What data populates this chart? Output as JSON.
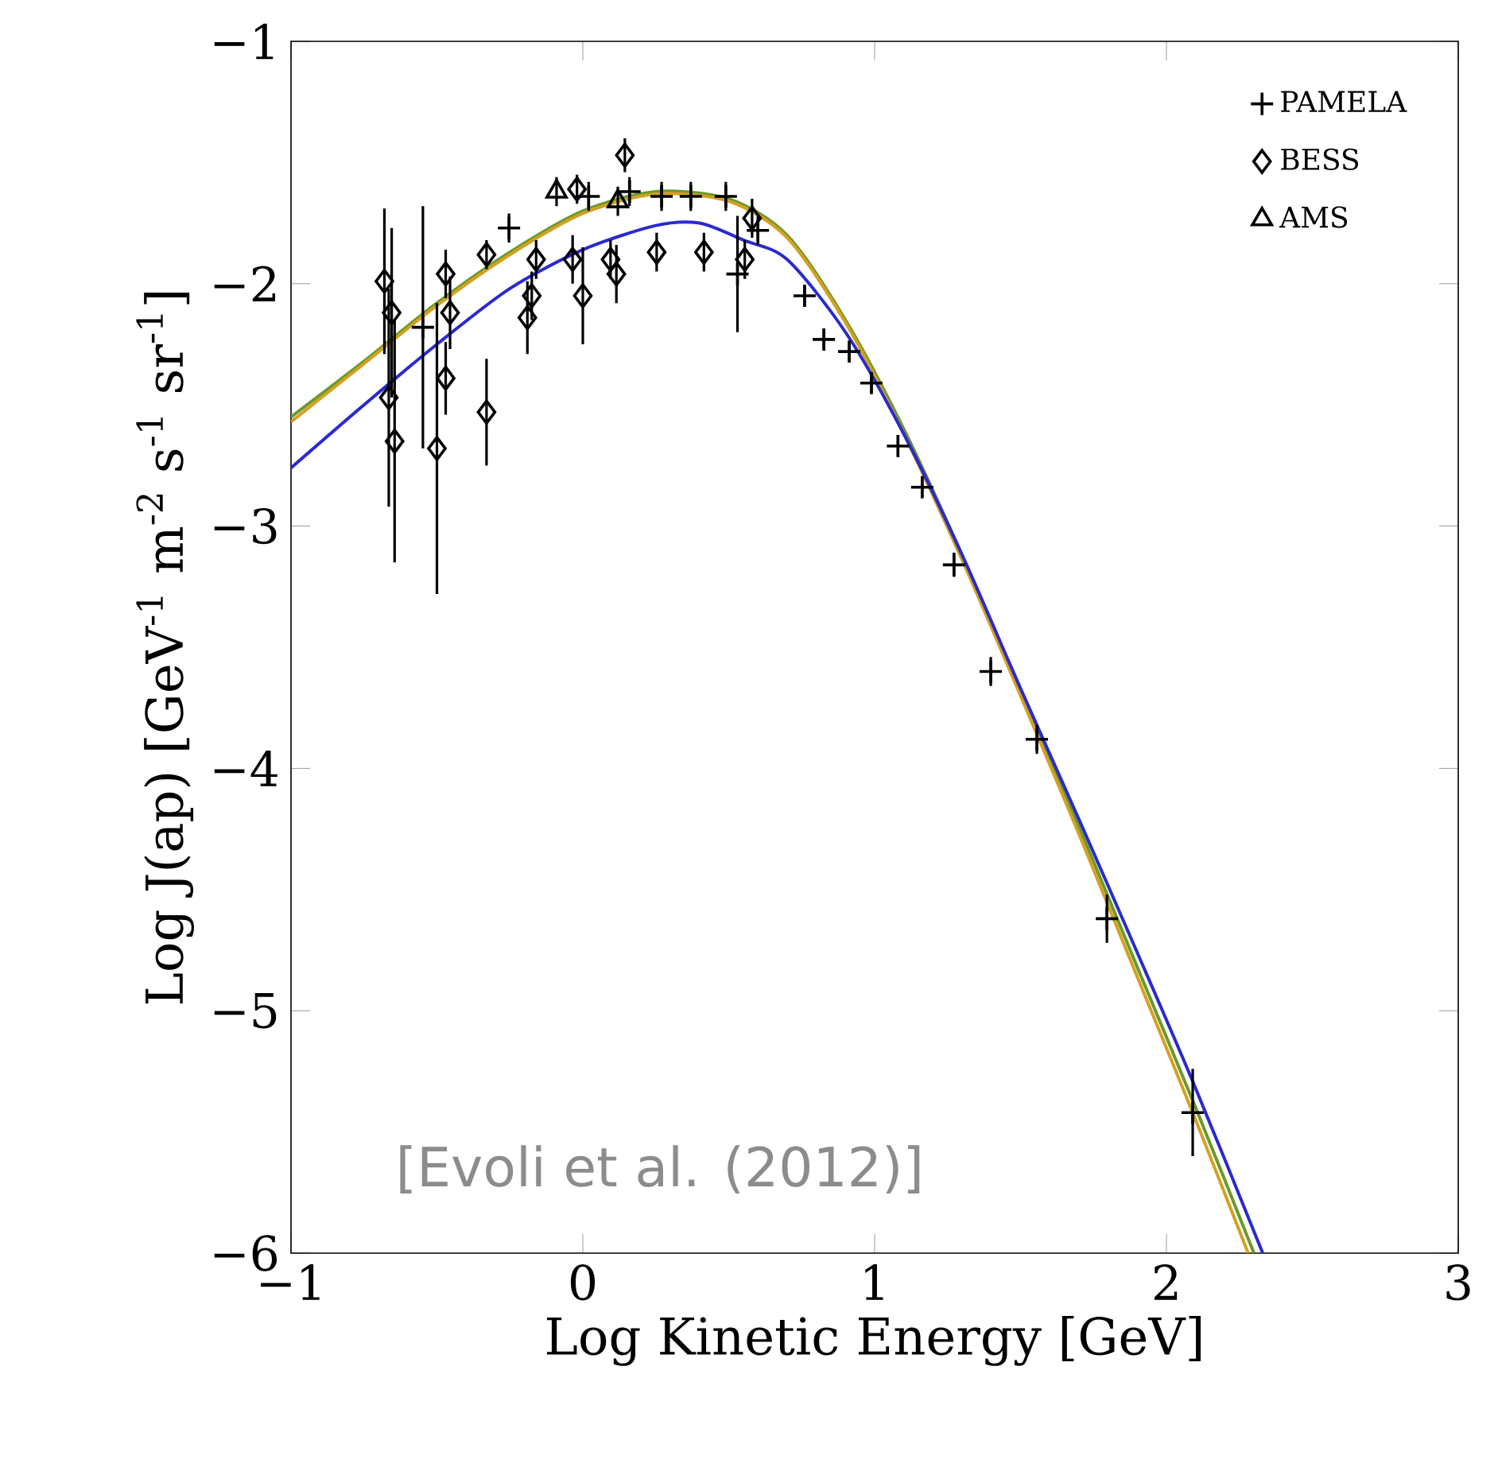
{
  "chart_data": {
    "type": "scatter",
    "xlabel": "Log Kinetic Energy [GeV]",
    "ylabel": "Log J(ap) [GeV$^{-1}$ m$^{-2}$ s$^{-1}$ sr$^{-1}$]",
    "xlim": [
      -1,
      3
    ],
    "ylim": [
      -6,
      -1
    ],
    "xticks": [
      {
        "value": -1,
        "label": "−1"
      },
      0,
      1,
      2,
      3
    ],
    "yticks": [
      {
        "value": -6,
        "label": "−6"
      },
      {
        "value": -5,
        "label": "−5"
      },
      {
        "value": -4,
        "label": "−4"
      },
      {
        "value": -3,
        "label": "−3"
      },
      {
        "value": -2,
        "label": "−2"
      },
      {
        "value": -1,
        "label": "−1"
      }
    ],
    "legend": "top right",
    "annotations": [
      "[Evoli et al. (2012)]"
    ],
    "series": [
      {
        "type": "line",
        "color": "#6a9a2a",
        "x": [
          -1,
          -0.75,
          -0.5,
          -0.25,
          0,
          0.25,
          0.5,
          0.7,
          0.9,
          1.1,
          1.3,
          1.5,
          1.7,
          1.9,
          2.1,
          2.3
        ],
        "values": [
          -2.55,
          -2.32,
          -2.08,
          -1.87,
          -1.7,
          -1.62,
          -1.65,
          -1.8,
          -2.15,
          -2.6,
          -3.12,
          -3.68,
          -4.24,
          -4.82,
          -5.4,
          -6.0
        ]
      },
      {
        "type": "line",
        "color": "#d4a020",
        "x": [
          -1,
          -0.75,
          -0.5,
          -0.25,
          0,
          0.25,
          0.5,
          0.7,
          0.9,
          1.1,
          1.3,
          1.5,
          1.7,
          1.9,
          2.1,
          2.28
        ],
        "values": [
          -2.57,
          -2.33,
          -2.09,
          -1.88,
          -1.71,
          -1.63,
          -1.66,
          -1.81,
          -2.16,
          -2.62,
          -3.14,
          -3.7,
          -4.27,
          -4.86,
          -5.45,
          -6.0
        ]
      },
      {
        "type": "line",
        "color": "#2a2ad0",
        "x": [
          -1,
          -0.75,
          -0.5,
          -0.25,
          0,
          0.25,
          0.4,
          0.55,
          0.7,
          0.9,
          1.1,
          1.3,
          1.5,
          1.7,
          1.9,
          2.1,
          2.33
        ],
        "values": [
          -2.76,
          -2.5,
          -2.25,
          -2.02,
          -1.86,
          -1.76,
          -1.75,
          -1.82,
          -1.9,
          -2.2,
          -2.62,
          -3.12,
          -3.67,
          -4.21,
          -4.76,
          -5.32,
          -6.0
        ]
      },
      {
        "name": "PAMELA",
        "color": "#000000",
        "marker": "cross",
        "x": [
          -0.548,
          -0.253,
          0.02,
          0.16,
          0.27,
          0.37,
          0.49,
          0.53,
          0.6,
          0.76,
          0.826,
          0.913,
          0.989,
          1.08,
          1.163,
          1.272,
          1.398,
          1.556,
          1.796,
          2.09
        ],
        "values": [
          -2.18,
          -1.77,
          -1.64,
          -1.62,
          -1.64,
          -1.64,
          -1.64,
          -1.96,
          -1.78,
          -2.05,
          -2.23,
          -2.28,
          -2.41,
          -2.67,
          -2.84,
          -3.16,
          -3.6,
          -3.88,
          -4.62,
          -5.42
        ],
        "errors": [
          0.5,
          0.06,
          0.06,
          0.06,
          0.06,
          0.06,
          0.06,
          0.24,
          0.06,
          0.04,
          0.04,
          0.04,
          0.04,
          0.04,
          0.04,
          0.05,
          0.06,
          0.06,
          0.1,
          0.18
        ]
      },
      {
        "name": "BESS",
        "color": "#000000",
        "marker": "diamond",
        "x": [
          -0.68,
          -0.655,
          -0.665,
          -0.645,
          -0.5,
          -0.47,
          -0.455,
          -0.47,
          -0.33,
          -0.33,
          -0.16,
          -0.175,
          -0.19,
          0.0,
          -0.035,
          0.095,
          0.115,
          0.144,
          0.253,
          0.415,
          0.555,
          0.58,
          -0.02
        ],
        "values": [
          -1.99,
          -2.12,
          -2.47,
          -2.65,
          -2.68,
          -1.96,
          -2.12,
          -2.39,
          -2.53,
          -1.88,
          -1.9,
          -2.05,
          -2.14,
          -2.05,
          -1.9,
          -1.9,
          -1.96,
          -1.47,
          -1.87,
          -1.87,
          -1.9,
          -1.73,
          -1.61
        ],
        "errors": [
          0.3,
          0.35,
          0.45,
          0.5,
          0.6,
          0.1,
          0.15,
          0.15,
          0.22,
          0.06,
          0.08,
          0.1,
          0.15,
          0.2,
          0.1,
          0.08,
          0.12,
          0.07,
          0.08,
          0.08,
          0.08,
          0.08,
          0.06
        ]
      },
      {
        "name": "AMS",
        "color": "#000000",
        "marker": "triangle",
        "x": [
          -0.09,
          0.12
        ],
        "values": [
          -1.62,
          -1.66
        ],
        "errors": [
          0.06,
          0.06
        ]
      }
    ]
  }
}
